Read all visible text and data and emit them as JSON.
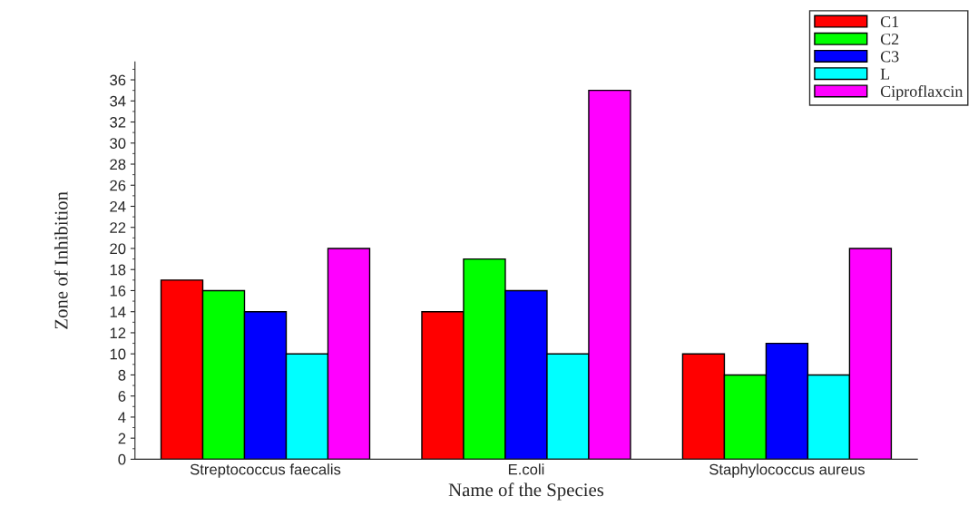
{
  "chart_data": {
    "type": "bar",
    "xlabel": "Name of the Species",
    "ylabel": "Zone of Inhibition",
    "categories": [
      "Streptococcus faecalis",
      "E.coli",
      "Staphylococcus aureus"
    ],
    "series": [
      {
        "name": "C1",
        "color": "#ff0000",
        "values": [
          17,
          14,
          10
        ]
      },
      {
        "name": "C2",
        "color": "#00ff00",
        "values": [
          16,
          19,
          8
        ]
      },
      {
        "name": "C3",
        "color": "#0000ff",
        "values": [
          14,
          16,
          11
        ]
      },
      {
        "name": "L",
        "color": "#00ffff",
        "values": [
          10,
          10,
          8
        ]
      },
      {
        "name": "Ciproflaxcin",
        "color": "#ff00ff",
        "values": [
          20,
          35,
          20
        ]
      }
    ],
    "ylim": [
      0,
      37.7
    ],
    "yticks": [
      0,
      2,
      4,
      6,
      8,
      10,
      12,
      14,
      16,
      18,
      20,
      22,
      24,
      26,
      28,
      30,
      32,
      34,
      36
    ],
    "grid": false,
    "legend": "top right"
  }
}
